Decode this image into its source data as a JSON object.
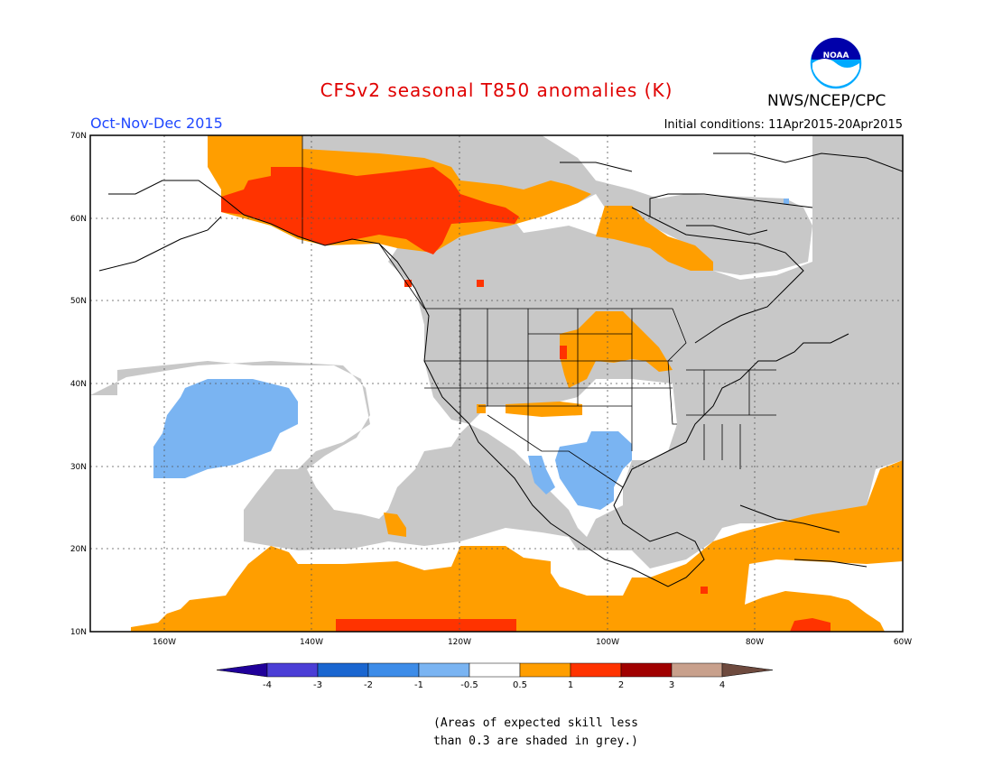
{
  "title": "CFSv2 seasonal T850 anomalies (K)",
  "period": "Oct-Nov-Dec 2015",
  "initial_conditions": "Initial conditions: 11Apr2015-20Apr2015",
  "agency": "NWS/NCEP/CPC",
  "logo": {
    "text": "NOAA",
    "icon": "noaa-logo-icon",
    "colors": [
      "#00aaff",
      "#0000aa",
      "#ffffff"
    ]
  },
  "map": {
    "lon_range": [
      -171,
      -60
    ],
    "lat_range": [
      10,
      70
    ],
    "lat_ticks": [
      "10N",
      "20N",
      "30N",
      "40N",
      "50N",
      "60N",
      "70N"
    ],
    "lon_ticks": [
      "160W",
      "140W",
      "120W",
      "100W",
      "80W",
      "60W"
    ],
    "grid": "dotted"
  },
  "colorbar": {
    "labels": [
      "-4",
      "-3",
      "-2",
      "-1",
      "-0.5",
      "0.5",
      "1",
      "2",
      "3",
      "4"
    ],
    "colors": [
      "#20009a",
      "#4b3ed6",
      "#1a66d0",
      "#3d8ce8",
      "#7ab4f2",
      "#ffffff",
      "#ff9e00",
      "#ff3300",
      "#a00000",
      "#c8a08c",
      "#6e4a3e"
    ],
    "grey": "#c8c8c8"
  },
  "footnote": {
    "line1": "(Areas of expected skill less",
    "line2": "than 0.3 are shaded in grey.)"
  }
}
